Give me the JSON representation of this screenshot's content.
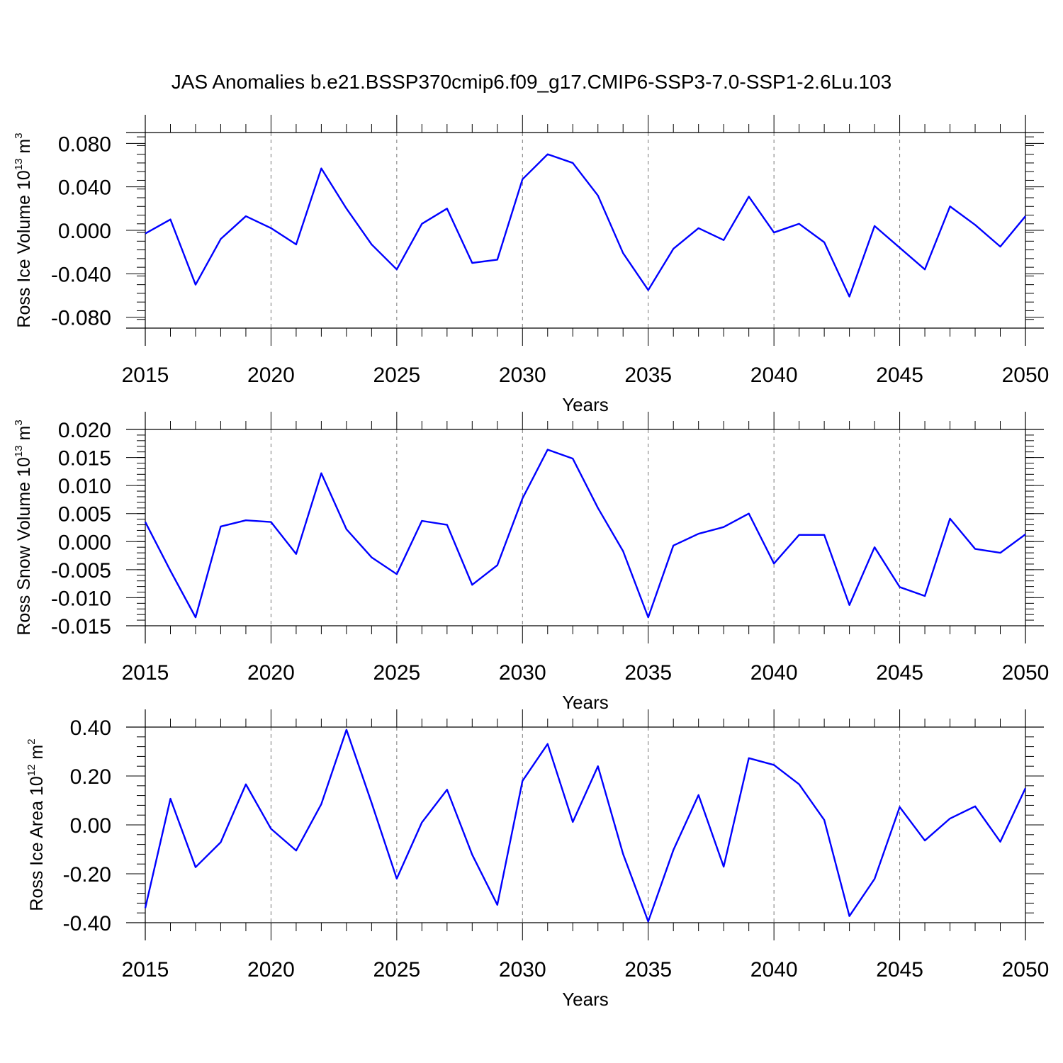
{
  "title": "JAS Anomalies b.e21.BSSP370cmip6.f09_g17.CMIP6-SSP3-7.0-SSP1-2.6Lu.103",
  "line_color": "#0000ff",
  "chart_data": [
    {
      "type": "line",
      "ylabel_main": "Ross Ice Volume 10",
      "ylabel_exp": "13",
      "ylabel_unit": " m",
      "ylabel_unit_exp": "3",
      "xlabel": "Years",
      "xlim": [
        2015,
        2050
      ],
      "ylim": [
        -0.09,
        0.09
      ],
      "yticks": [
        -0.08,
        -0.04,
        0.0,
        0.04,
        0.08
      ],
      "ytick_labels": [
        "-0.080",
        "-0.040",
        "0.000",
        "0.040",
        "0.080"
      ],
      "xticks": [
        2015,
        2020,
        2025,
        2030,
        2035,
        2040,
        2045,
        2050
      ],
      "xtick_labels": [
        "2015",
        "2020",
        "2025",
        "2030",
        "2035",
        "2040",
        "2045",
        "2050"
      ],
      "x": [
        2015,
        2016,
        2017,
        2018,
        2019,
        2020,
        2021,
        2022,
        2023,
        2024,
        2025,
        2026,
        2027,
        2028,
        2029,
        2030,
        2031,
        2032,
        2033,
        2034,
        2035,
        2036,
        2037,
        2038,
        2039,
        2040,
        2041,
        2042,
        2043,
        2044,
        2045,
        2046,
        2047,
        2048,
        2049,
        2050
      ],
      "values": [
        -0.003,
        0.01,
        -0.05,
        -0.008,
        0.013,
        0.002,
        -0.013,
        0.057,
        0.02,
        -0.013,
        -0.036,
        0.006,
        0.02,
        -0.03,
        -0.027,
        0.047,
        0.07,
        0.062,
        0.032,
        -0.021,
        -0.055,
        -0.017,
        0.002,
        -0.009,
        0.031,
        -0.002,
        0.006,
        -0.011,
        -0.061,
        0.004,
        -0.016,
        -0.036,
        0.022,
        0.005,
        -0.015,
        0.013
      ]
    },
    {
      "type": "line",
      "ylabel_main": "Ross Snow Volume 10",
      "ylabel_exp": "13",
      "ylabel_unit": " m",
      "ylabel_unit_exp": "3",
      "xlabel": "Years",
      "xlim": [
        2015,
        2050
      ],
      "ylim": [
        -0.015,
        0.02
      ],
      "yticks": [
        -0.015,
        -0.01,
        -0.005,
        0.0,
        0.005,
        0.01,
        0.015,
        0.02
      ],
      "ytick_labels": [
        "-0.015",
        "-0.010",
        "-0.005",
        "0.000",
        "0.005",
        "0.010",
        "0.015",
        "0.020"
      ],
      "xticks": [
        2015,
        2020,
        2025,
        2030,
        2035,
        2040,
        2045,
        2050
      ],
      "xtick_labels": [
        "2015",
        "2020",
        "2025",
        "2030",
        "2035",
        "2040",
        "2045",
        "2050"
      ],
      "x": [
        2015,
        2016,
        2017,
        2018,
        2019,
        2020,
        2021,
        2022,
        2023,
        2024,
        2025,
        2026,
        2027,
        2028,
        2029,
        2030,
        2031,
        2032,
        2033,
        2034,
        2035,
        2036,
        2037,
        2038,
        2039,
        2040,
        2041,
        2042,
        2043,
        2044,
        2045,
        2046,
        2047,
        2048,
        2049,
        2050
      ],
      "values": [
        0.0035,
        -0.0052,
        -0.0135,
        0.0027,
        0.0038,
        0.0035,
        -0.0022,
        0.0122,
        0.0022,
        -0.0028,
        -0.0058,
        0.0037,
        0.003,
        -0.0077,
        -0.0042,
        0.0077,
        0.0164,
        0.0148,
        0.006,
        -0.0017,
        -0.0135,
        -0.0007,
        0.0014,
        0.0026,
        0.005,
        -0.0039,
        0.0012,
        0.0012,
        -0.0113,
        -0.001,
        -0.0081,
        -0.0097,
        0.0041,
        -0.0013,
        -0.002,
        0.0013
      ]
    },
    {
      "type": "line",
      "ylabel_main": "Ross Ice Area 10",
      "ylabel_exp": "12",
      "ylabel_unit": " m",
      "ylabel_unit_exp": "2",
      "xlabel": "Years",
      "xlim": [
        2015,
        2050
      ],
      "ylim": [
        -0.4,
        0.4
      ],
      "yticks": [
        -0.4,
        -0.2,
        0.0,
        0.2,
        0.4
      ],
      "ytick_labels": [
        "-0.40",
        "-0.20",
        "0.00",
        "0.20",
        "0.40"
      ],
      "xticks": [
        2015,
        2020,
        2025,
        2030,
        2035,
        2040,
        2045,
        2050
      ],
      "xtick_labels": [
        "2015",
        "2020",
        "2025",
        "2030",
        "2035",
        "2040",
        "2045",
        "2050"
      ],
      "x": [
        2015,
        2016,
        2017,
        2018,
        2019,
        2020,
        2021,
        2022,
        2023,
        2024,
        2025,
        2026,
        2027,
        2028,
        2029,
        2030,
        2031,
        2032,
        2033,
        2034,
        2035,
        2036,
        2037,
        2038,
        2039,
        2040,
        2041,
        2042,
        2043,
        2044,
        2045,
        2046,
        2047,
        2048,
        2049,
        2050
      ],
      "values": [
        -0.34,
        0.107,
        -0.173,
        -0.071,
        0.166,
        -0.016,
        -0.105,
        0.085,
        0.389,
        0.09,
        -0.22,
        0.01,
        0.144,
        -0.122,
        -0.327,
        0.18,
        0.331,
        0.012,
        0.24,
        -0.119,
        -0.395,
        -0.103,
        0.122,
        -0.171,
        0.273,
        0.245,
        0.166,
        0.02,
        -0.373,
        -0.221,
        0.073,
        -0.064,
        0.026,
        0.076,
        -0.069,
        0.15
      ]
    }
  ]
}
